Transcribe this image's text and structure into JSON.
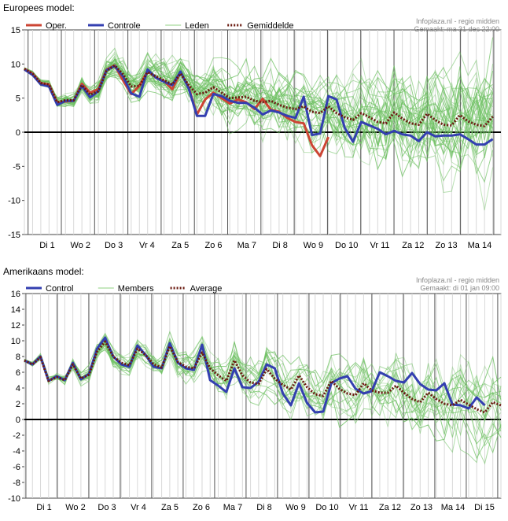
{
  "chart_data": [
    {
      "type": "line",
      "title": "Europees model:",
      "source": "Infoplaza.nl - regio midden",
      "made": "Gemaakt: ma 31 dec 22:00",
      "ylim": [
        -15,
        15
      ],
      "yticks": [
        15,
        10,
        5,
        0,
        -5,
        -10,
        -15
      ],
      "day_labels": [
        "Di 1",
        "Wo 2",
        "Do 3",
        "Vr 4",
        "Za 5",
        "Zo 6",
        "Ma 7",
        "Di 8",
        "Wo 9",
        "Do 10",
        "Vr 11",
        "Za 12",
        "Zo 13",
        "Ma 14"
      ],
      "steps_per_day": 4,
      "first_day_offset": 0.5,
      "total_steps": 59,
      "legend": [
        {
          "label": "Oper.",
          "style": "oper"
        },
        {
          "label": "Controle",
          "style": "control"
        },
        {
          "label": "Leden",
          "style": "members"
        },
        {
          "label": "Gemiddelde",
          "style": "mean"
        }
      ],
      "series": [
        {
          "name": "Oper.",
          "color": "#cc4433",
          "values": [
            9.3,
            8.6,
            7.2,
            7.0,
            4.3,
            4.5,
            4.6,
            7.1,
            5.8,
            6.3,
            9.2,
            9.8,
            7.6,
            5.6,
            6.8,
            9.0,
            8.0,
            7.5,
            6.3,
            8.8,
            6.6,
            2.6,
            4.8,
            5.8,
            5.0,
            4.2,
            4.8,
            4.4,
            3.4,
            4.9,
            3.3,
            3.0,
            2.1,
            1.5,
            1.3,
            -1.9,
            -3.5,
            -0.7
          ]
        },
        {
          "name": "Controle",
          "color": "#333fb0",
          "values": [
            9.2,
            8.4,
            7.0,
            6.7,
            4.0,
            4.6,
            4.6,
            6.8,
            5.1,
            6.0,
            9.1,
            9.7,
            8.2,
            5.7,
            5.2,
            9.2,
            8.0,
            7.4,
            6.9,
            8.9,
            6.4,
            2.4,
            2.4,
            5.6,
            5.3,
            4.6,
            4.3,
            4.3,
            3.6,
            2.6,
            3.2,
            2.9,
            2.4,
            2.1,
            5.2,
            -0.4,
            -0.2,
            5.3,
            4.8,
            0.6,
            -1.4,
            1.5,
            1.0,
            0.5,
            -0.3,
            0.2,
            -0.3,
            -0.5,
            -1.3,
            0.0,
            -0.6,
            -0.5,
            -0.5,
            -0.3,
            -1.0,
            -1.8,
            -1.8,
            -1.0
          ]
        },
        {
          "name": "Gemiddelde",
          "color": "#6a1a10",
          "values": [
            9.3,
            8.6,
            7.2,
            7.0,
            4.4,
            4.7,
            4.7,
            6.9,
            5.5,
            6.0,
            9.0,
            9.8,
            8.5,
            6.7,
            6.8,
            8.8,
            8.2,
            7.6,
            7.0,
            8.6,
            6.9,
            5.6,
            5.8,
            6.6,
            5.8,
            5.0,
            5.1,
            5.2,
            4.6,
            4.4,
            4.6,
            4.0,
            3.6,
            3.4,
            3.8,
            3.0,
            2.8,
            3.8,
            2.8,
            2.2,
            1.8,
            2.8,
            2.2,
            1.5,
            1.3,
            2.9,
            2.0,
            1.3,
            1.1,
            2.7,
            1.8,
            1.1,
            1.0,
            2.5,
            1.6,
            1.1,
            0.9,
            2.3
          ]
        }
      ]
    },
    {
      "type": "line",
      "title": "Amerikaans model:",
      "source": "Infoplaza.nl - regio midden",
      "made": "Gemaakt: di 01 jan 09:00",
      "ylim": [
        -10,
        16
      ],
      "yticks": [
        16,
        14,
        12,
        10,
        8,
        6,
        4,
        2,
        0,
        -2,
        -4,
        -6,
        -8,
        -10
      ],
      "day_labels": [
        "Di 1",
        "Wo 2",
        "Do 3",
        "Vr 4",
        "Za 5",
        "Zo 6",
        "Ma 7",
        "Di 8",
        "Wo 9",
        "Do 10",
        "Vr 11",
        "Za 12",
        "Zo 13",
        "Ma 14",
        "Di 15"
      ],
      "steps_per_day": 4,
      "first_day_offset": 0.5,
      "total_steps": 60,
      "legend": [
        {
          "label": "Control",
          "style": "control"
        },
        {
          "label": "Members",
          "style": "members"
        },
        {
          "label": "Average",
          "style": "mean"
        }
      ],
      "series": [
        {
          "name": "Control",
          "color": "#333fb0",
          "values": [
            7.5,
            7.0,
            8.0,
            4.9,
            5.5,
            5.0,
            7.2,
            5.1,
            5.8,
            9.0,
            10.4,
            8.0,
            7.0,
            6.7,
            9.4,
            8.2,
            6.7,
            6.5,
            9.7,
            7.2,
            6.5,
            6.3,
            9.5,
            5.0,
            4.3,
            3.5,
            6.5,
            4.1,
            4.0,
            4.8,
            7.0,
            6.5,
            3.3,
            1.8,
            4.6,
            2.1,
            0.9,
            1.0,
            4.6,
            5.2,
            5.5,
            3.9,
            3.3,
            3.6,
            6.0,
            5.5,
            4.9,
            4.7,
            5.9,
            4.5,
            3.8,
            3.7,
            4.6,
            1.9,
            1.8,
            1.4,
            2.8,
            1.8
          ]
        },
        {
          "name": "Average",
          "color": "#6a1a10",
          "values": [
            7.5,
            7.0,
            7.9,
            4.9,
            5.4,
            5.0,
            7.0,
            5.2,
            5.7,
            8.6,
            9.9,
            8.0,
            7.2,
            6.9,
            9.0,
            8.2,
            7.0,
            6.6,
            9.3,
            7.3,
            6.7,
            6.5,
            8.5,
            6.5,
            5.6,
            4.9,
            7.5,
            5.6,
            4.7,
            4.5,
            6.4,
            5.2,
            4.4,
            3.8,
            5.6,
            4.1,
            3.2,
            3.0,
            4.9,
            3.9,
            3.3,
            3.1,
            4.6,
            3.7,
            3.4,
            3.4,
            4.3,
            3.4,
            2.6,
            2.2,
            3.4,
            2.6,
            2.0,
            1.8,
            2.5,
            1.9,
            1.3,
            0.9,
            2.2,
            1.8
          ]
        }
      ]
    }
  ]
}
